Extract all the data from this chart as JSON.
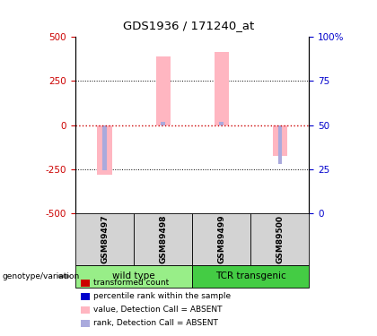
{
  "title": "GDS1936 / 171240_at",
  "samples": [
    "GSM89497",
    "GSM89498",
    "GSM89499",
    "GSM89500"
  ],
  "bar_values": [
    -280,
    390,
    415,
    -175
  ],
  "rank_values": [
    -255,
    18,
    18,
    -220
  ],
  "ylim": [
    -500,
    500
  ],
  "yticks_left": [
    -500,
    -250,
    0,
    250,
    500
  ],
  "right_ticks_pos": [
    -500,
    -250,
    0,
    250,
    500
  ],
  "right_tick_labels": [
    "0",
    "25",
    "50",
    "75",
    "100%"
  ],
  "bar_color_absent": "#FFB6C1",
  "rank_color_absent": "#AAAADD",
  "zero_line_color": "#CC0000",
  "left_tick_color": "#CC0000",
  "right_tick_color": "#0000CC",
  "bg_color": "#FFFFFF",
  "sample_box_color": "#D3D3D3",
  "group_box_color_wt": "#98EE88",
  "group_box_color_tcr": "#44CC44",
  "legend_colors": [
    "#CC0000",
    "#0000CC",
    "#FFB6C1",
    "#AAAADD"
  ],
  "legend_labels": [
    "transformed count",
    "percentile rank within the sample",
    "value, Detection Call = ABSENT",
    "rank, Detection Call = ABSENT"
  ]
}
